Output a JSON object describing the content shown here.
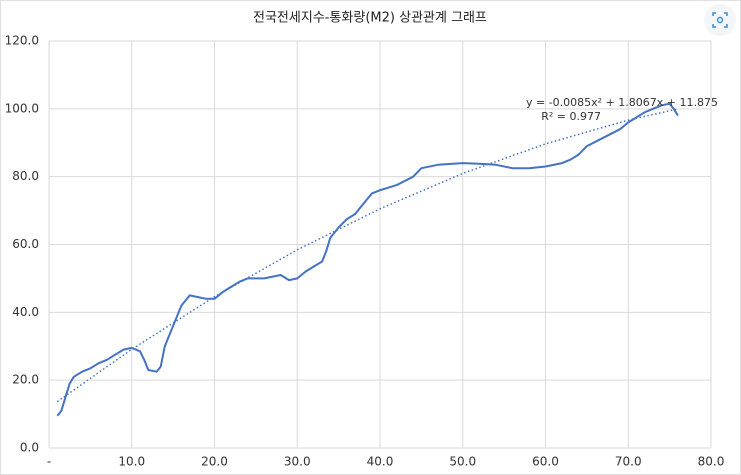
{
  "chart_data": {
    "type": "line",
    "title": "전국전세지수-통화량(M2) 상관관계 그래프",
    "annotations": [
      "y = -0.0085x² + 1.8067x + 11.875",
      "R² = 0.977"
    ],
    "xlim": [
      0,
      80
    ],
    "xticks": [
      {
        "value": 0,
        "label": "-"
      },
      {
        "value": 10,
        "label": "10.0"
      },
      {
        "value": 20,
        "label": "20.0"
      },
      {
        "value": 30,
        "label": "30.0"
      },
      {
        "value": 40,
        "label": "40.0"
      },
      {
        "value": 50,
        "label": "50.0"
      },
      {
        "value": 60,
        "label": "60.0"
      },
      {
        "value": 70,
        "label": "70.0"
      },
      {
        "value": 80,
        "label": "80.0"
      }
    ],
    "ylim": [
      0,
      120
    ],
    "yticks": [
      {
        "value": 0,
        "label": "0.0"
      },
      {
        "value": 20,
        "label": "20.0"
      },
      {
        "value": 40,
        "label": "40.0"
      },
      {
        "value": 60,
        "label": "60.0"
      },
      {
        "value": 80,
        "label": "80.0"
      },
      {
        "value": 100,
        "label": "100.0"
      },
      {
        "value": 120,
        "label": "120.0"
      }
    ],
    "grid": true,
    "series": [
      {
        "color": "#4472c4",
        "dash": "solid",
        "x": [
          1,
          1.5,
          2,
          2.5,
          3,
          4,
          5,
          6,
          7,
          8,
          9,
          10,
          11,
          11.5,
          12,
          13,
          13.5,
          14,
          15,
          16,
          17,
          18,
          19,
          20,
          21,
          22,
          23,
          24,
          26,
          28,
          29,
          30,
          31,
          32,
          33,
          33.5,
          34,
          35,
          36,
          37,
          38,
          39,
          40,
          42,
          44,
          45,
          47,
          50,
          52,
          54,
          56,
          58,
          60,
          62,
          63,
          64,
          65,
          67,
          69,
          70,
          72,
          74,
          75,
          75.5,
          76
        ],
        "values": [
          9.5,
          11,
          15,
          19,
          21,
          22.5,
          23.5,
          25,
          26,
          27.5,
          29,
          29.5,
          28.5,
          26,
          23,
          22.5,
          24,
          30,
          36,
          42,
          45,
          44.5,
          44,
          44,
          46,
          47.5,
          49,
          50,
          50,
          51,
          49.5,
          50,
          52,
          53.5,
          55,
          58,
          62,
          65,
          67.5,
          69,
          72,
          75,
          76,
          77.5,
          80,
          82.5,
          83.5,
          84,
          83.8,
          83.5,
          82.5,
          82.5,
          83,
          84,
          85,
          86.5,
          89,
          91.5,
          94,
          96,
          99,
          101,
          101.5,
          100,
          98
        ]
      },
      {
        "color": "#4472c4",
        "dash": "dotted",
        "x": [
          1,
          10,
          20,
          30,
          40,
          50,
          60,
          70,
          76
        ],
        "values": [
          13.67,
          29.09,
          44.61,
          58.43,
          70.54,
          80.96,
          89.67,
          96.68,
          99.98
        ]
      }
    ]
  }
}
